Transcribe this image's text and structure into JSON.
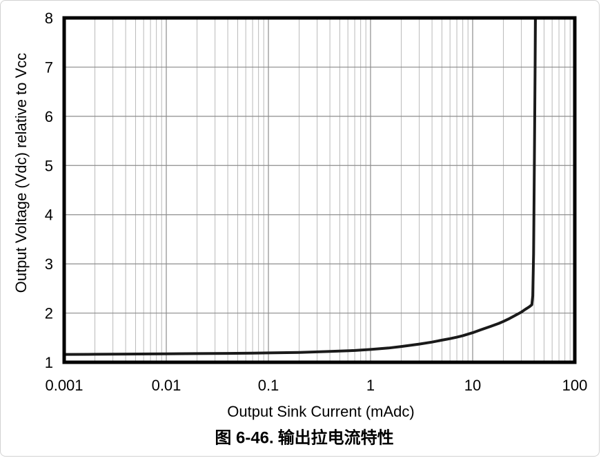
{
  "figure": {
    "caption_prefix": "图 6-46.",
    "caption_title": "输出拉电流特性"
  },
  "chart_data": {
    "type": "line",
    "title": "",
    "xlabel": "Output Sink Current (mAdc)",
    "ylabel": "Output Voltage (Vdc) relative to Vcc",
    "x_scale": "log",
    "xlim": [
      0.001,
      100
    ],
    "ylim": [
      1,
      8
    ],
    "x_ticks": [
      {
        "value": 0.001,
        "label": "0.001"
      },
      {
        "value": 0.01,
        "label": "0.01"
      },
      {
        "value": 0.1,
        "label": "0.1"
      },
      {
        "value": 1,
        "label": "1"
      },
      {
        "value": 10,
        "label": "10"
      },
      {
        "value": 100,
        "label": "100"
      }
    ],
    "y_ticks": [
      {
        "value": 1,
        "label": "1"
      },
      {
        "value": 2,
        "label": "2"
      },
      {
        "value": 3,
        "label": "3"
      },
      {
        "value": 4,
        "label": "4"
      },
      {
        "value": 5,
        "label": "5"
      },
      {
        "value": 6,
        "label": "6"
      },
      {
        "value": 7,
        "label": "7"
      },
      {
        "value": 8,
        "label": "8"
      }
    ],
    "grid": {
      "major": true,
      "minor": true,
      "major_color": "#8c8c8c",
      "minor_color": "#b9b9b9"
    },
    "colors": {
      "curve": "#1a1a1a",
      "border": "#000000",
      "text": "#000000"
    },
    "legend": "none",
    "series": [
      {
        "name": "output_voltage_vs_sink_current",
        "points": [
          [
            0.001,
            1.16
          ],
          [
            0.002,
            1.163
          ],
          [
            0.004,
            1.166
          ],
          [
            0.007,
            1.169
          ],
          [
            0.01,
            1.172
          ],
          [
            0.02,
            1.176
          ],
          [
            0.04,
            1.181
          ],
          [
            0.07,
            1.186
          ],
          [
            0.1,
            1.19
          ],
          [
            0.2,
            1.2
          ],
          [
            0.4,
            1.22
          ],
          [
            0.7,
            1.24
          ],
          [
            1,
            1.26
          ],
          [
            1.5,
            1.29
          ],
          [
            2,
            1.32
          ],
          [
            3,
            1.37
          ],
          [
            4,
            1.41
          ],
          [
            5,
            1.45
          ],
          [
            6,
            1.48
          ],
          [
            7,
            1.51
          ],
          [
            8,
            1.54
          ],
          [
            10,
            1.6
          ],
          [
            12,
            1.66
          ],
          [
            15,
            1.73
          ],
          [
            18,
            1.79
          ],
          [
            20,
            1.83
          ],
          [
            23,
            1.89
          ],
          [
            26,
            1.95
          ],
          [
            30,
            2.02
          ],
          [
            33,
            2.08
          ],
          [
            36,
            2.13
          ],
          [
            38,
            2.17
          ],
          [
            38.8,
            2.35
          ],
          [
            39.5,
            3.2
          ],
          [
            40.2,
            5.0
          ],
          [
            40.8,
            6.8
          ],
          [
            41.2,
            8.0
          ]
        ]
      }
    ]
  }
}
